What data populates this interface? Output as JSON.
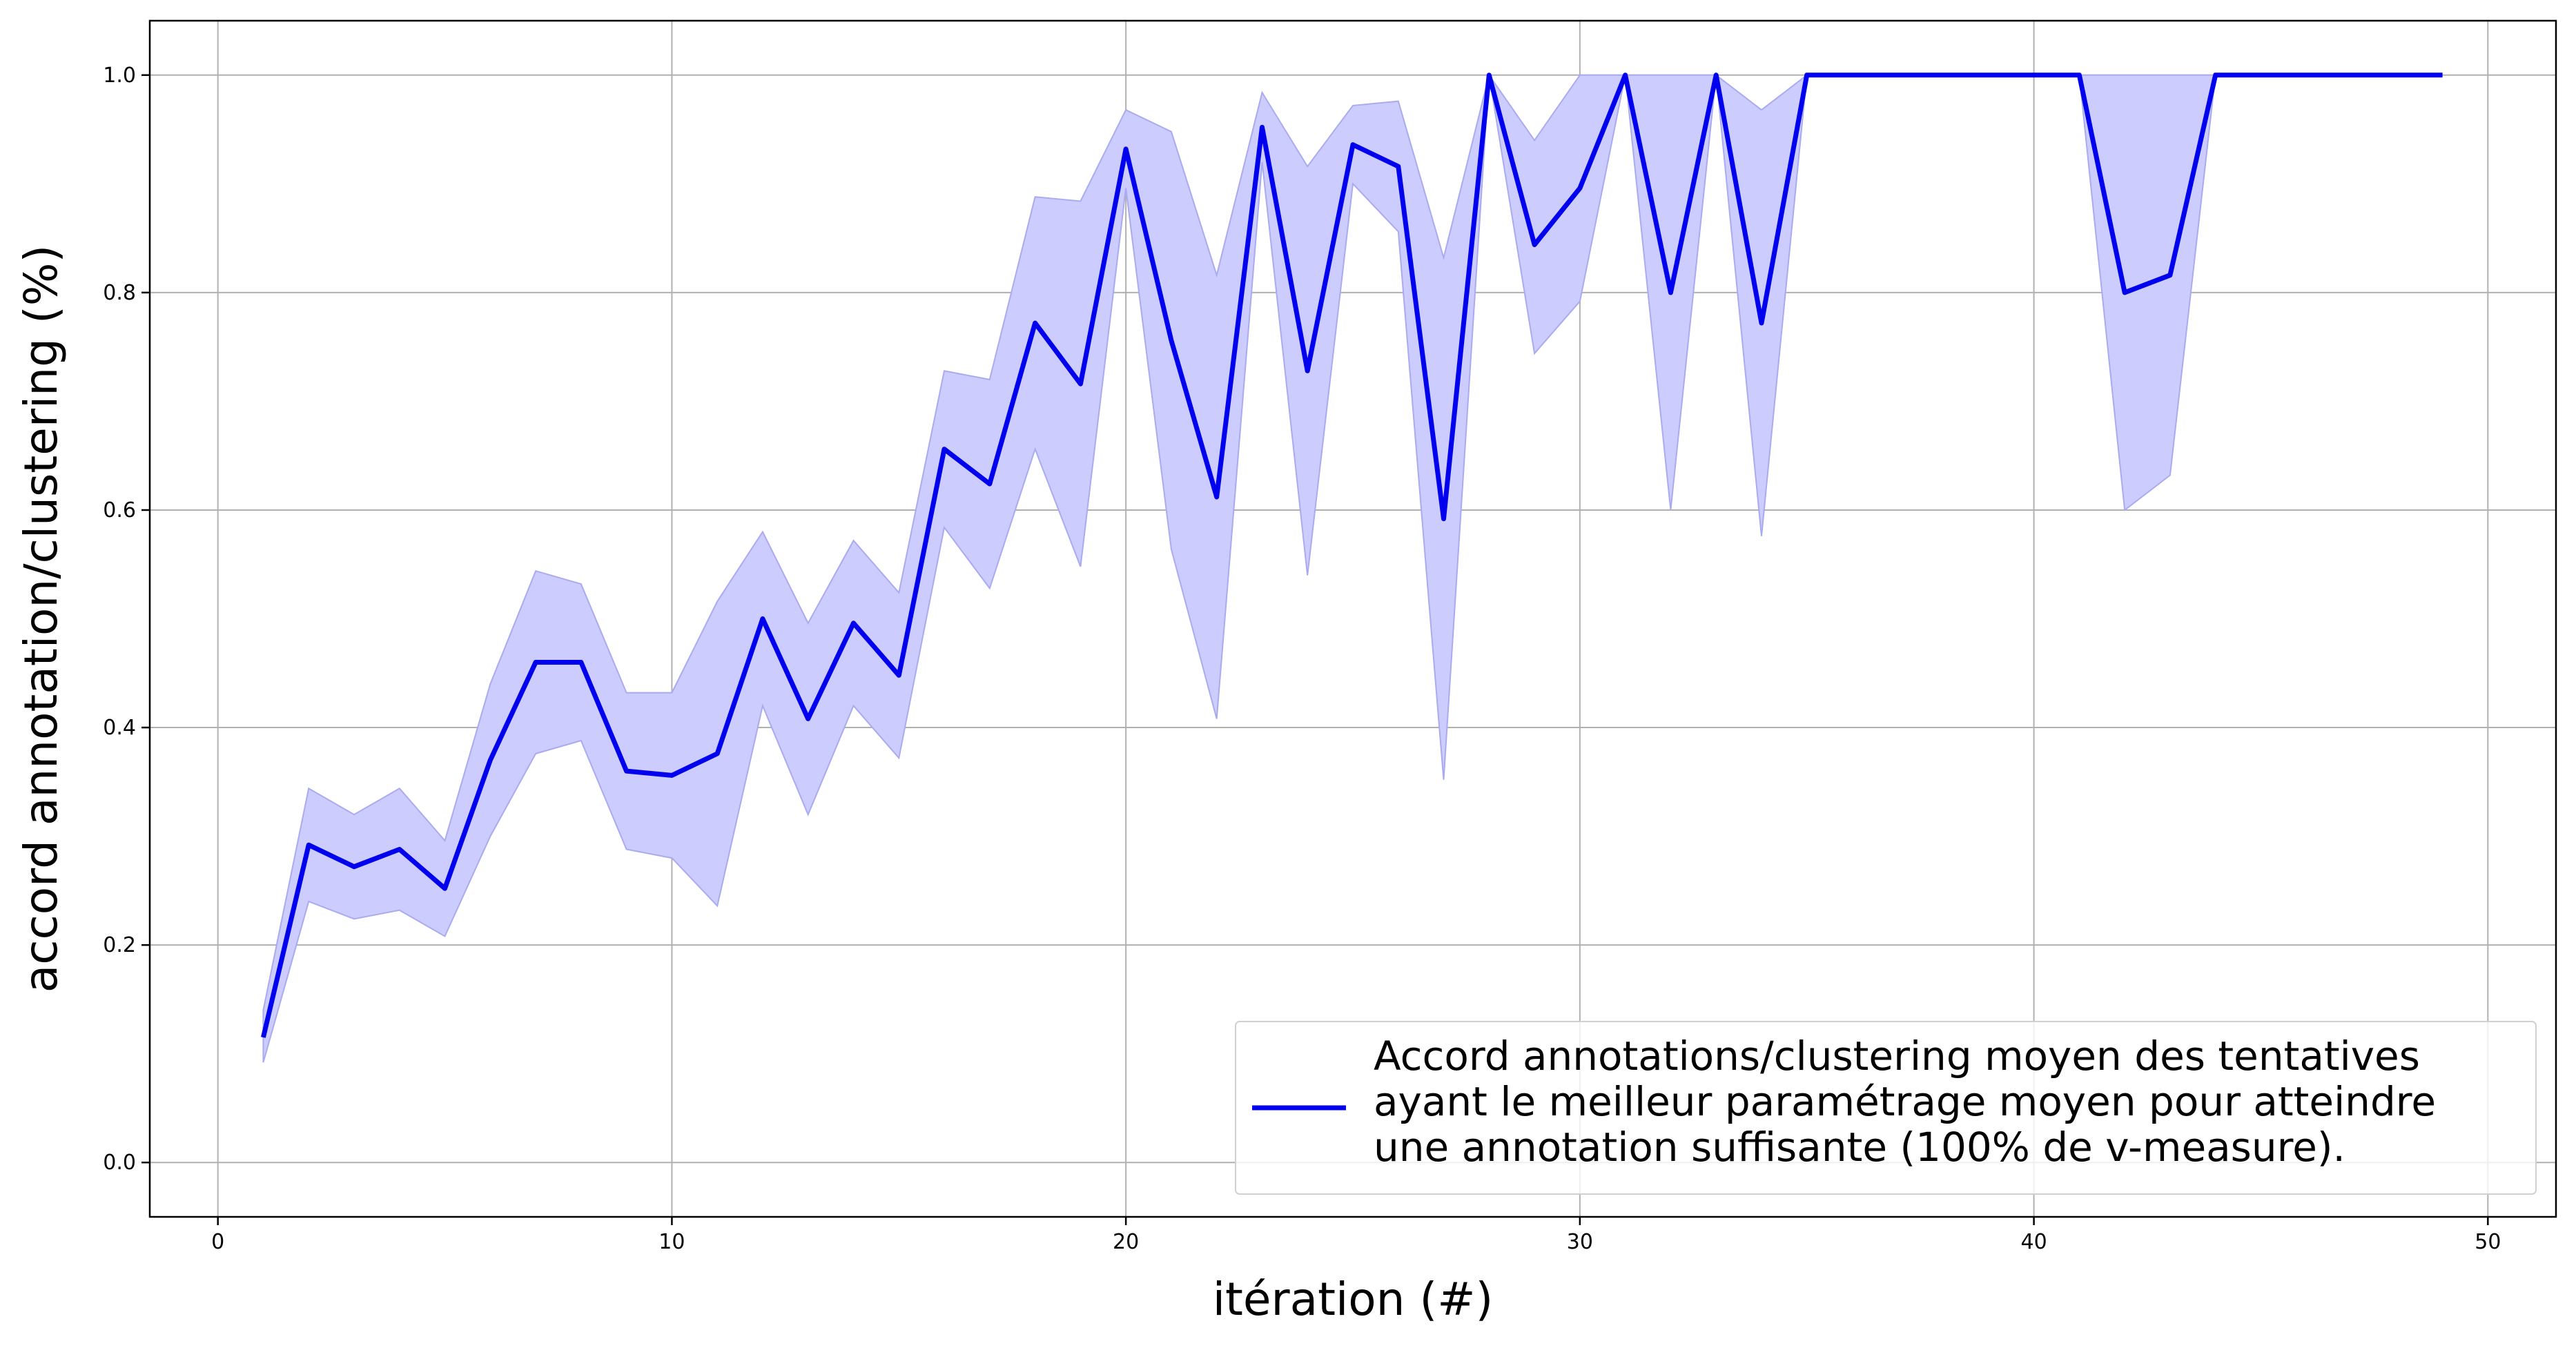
{
  "chart_data": {
    "type": "line",
    "title": "",
    "xlabel": "itération (#)",
    "ylabel": "accord annotation/clustering (%)",
    "xlim": [
      -1.5,
      51.5
    ],
    "ylim": [
      -0.05,
      1.05
    ],
    "xticks": [
      0,
      10,
      20,
      30,
      40,
      50
    ],
    "yticks": [
      0.0,
      0.2,
      0.4,
      0.6,
      0.8,
      1.0
    ],
    "grid": true,
    "legend_position": "lower-right",
    "legend_lines": [
      "Accord annotations/clustering moyen des tentatives",
      "ayant le meilleur paramétrage moyen pour atteindre",
      "une annotation suffisante (100% de v-measure)."
    ],
    "colors": {
      "line": "#0000ee",
      "band": "#ccccff",
      "band_edge": "#aaaaf0"
    },
    "series": [
      {
        "x": [
          1,
          2,
          3,
          4,
          5,
          6,
          7,
          8,
          9,
          10,
          11,
          12,
          13,
          14,
          15,
          16,
          17,
          18,
          19,
          20,
          21,
          22,
          23,
          24,
          25,
          26,
          27,
          28,
          29,
          30,
          31,
          32,
          33,
          34,
          35,
          36,
          37,
          38,
          39,
          40,
          41,
          42,
          43,
          44,
          45,
          46,
          47,
          48,
          49
        ],
        "mean": [
          0.115,
          0.292,
          0.272,
          0.288,
          0.252,
          0.37,
          0.46,
          0.46,
          0.36,
          0.356,
          0.376,
          0.5,
          0.408,
          0.496,
          0.448,
          0.656,
          0.624,
          0.772,
          0.716,
          0.932,
          0.756,
          0.612,
          0.952,
          0.728,
          0.936,
          0.916,
          0.592,
          1.0,
          0.844,
          0.896,
          1.0,
          0.8,
          1.0,
          0.772,
          1.0,
          1.0,
          1.0,
          1.0,
          1.0,
          1.0,
          1.0,
          0.8,
          0.816,
          1.0,
          1.0,
          1.0,
          1.0,
          1.0,
          1.0
        ],
        "upper": [
          0.14,
          0.344,
          0.32,
          0.344,
          0.296,
          0.44,
          0.544,
          0.532,
          0.432,
          0.432,
          0.516,
          0.58,
          0.496,
          0.572,
          0.524,
          0.728,
          0.72,
          0.888,
          0.884,
          0.968,
          0.948,
          0.816,
          0.984,
          0.916,
          0.972,
          0.976,
          0.832,
          1.0,
          0.94,
          1.0,
          1.0,
          1.0,
          1.0,
          0.968,
          1.0,
          1.0,
          1.0,
          1.0,
          1.0,
          1.0,
          1.0,
          1.0,
          1.0,
          1.0,
          1.0,
          1.0,
          1.0,
          1.0,
          1.0
        ],
        "lower": [
          0.092,
          0.24,
          0.224,
          0.232,
          0.208,
          0.3,
          0.376,
          0.388,
          0.288,
          0.28,
          0.236,
          0.42,
          0.32,
          0.42,
          0.372,
          0.584,
          0.528,
          0.656,
          0.548,
          0.896,
          0.564,
          0.408,
          0.92,
          0.54,
          0.9,
          0.856,
          0.352,
          1.0,
          0.744,
          0.792,
          1.0,
          0.6,
          1.0,
          0.576,
          1.0,
          1.0,
          1.0,
          1.0,
          1.0,
          1.0,
          1.0,
          0.6,
          0.632,
          1.0,
          1.0,
          1.0,
          1.0,
          1.0,
          1.0
        ]
      }
    ]
  }
}
